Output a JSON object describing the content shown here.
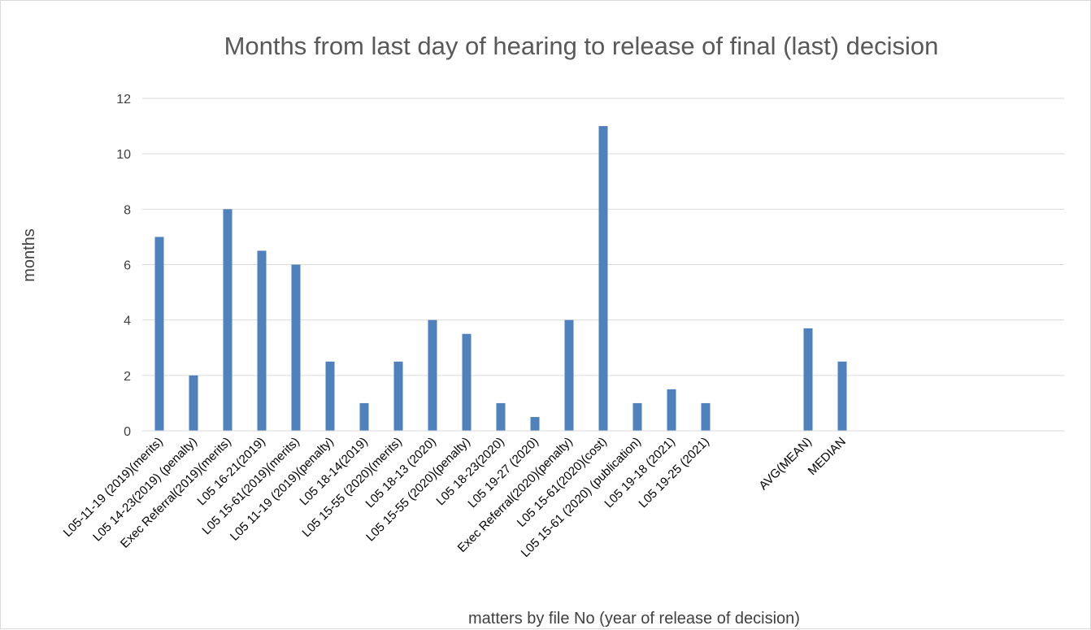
{
  "chart_data": {
    "type": "bar",
    "title": "Months from last day of hearing to release of final (last) decision",
    "xlabel": "matters by file No (year of release of decision)",
    "ylabel": "months",
    "ylim": [
      0,
      12
    ],
    "yticks": [
      0,
      2,
      4,
      6,
      8,
      10,
      12
    ],
    "grid": true,
    "legend": "none",
    "bar_color": "#4f81bd",
    "categories": [
      "L05-11-19 (2019)(merits)",
      "L05 14-23(2019) (penalty)",
      "Exec Referral(2019)(merits)",
      "L05 16-21(2019)",
      "L05 15-61(2019)(merits)",
      "L05 11-19 (2019)(penalty)",
      "L05 18-14(2019)",
      "L05 15-55 (2020)(merits)",
      "L05 18-13 (2020)",
      "L05 15-55 (2020)(penalty)",
      "L05 18-23(2020)",
      "L05 19-27 (2020)",
      "Exec Referral(2020)(penalty)",
      "L05 15-61(2020)(cost)",
      "L05 15-61 (2020) (publication)",
      "L05 19-18 (2021)",
      "L05 19-25 (2021)",
      "",
      "",
      "AVG(MEAN)",
      "MEDIAN",
      "",
      "",
      "",
      "",
      "",
      ""
    ],
    "values": [
      7,
      2,
      8,
      6.5,
      6,
      2.5,
      1,
      2.5,
      4,
      3.5,
      1,
      0.5,
      4,
      11,
      1,
      1.5,
      1,
      null,
      null,
      3.7,
      2.5,
      null,
      null,
      null,
      null,
      null,
      null
    ]
  }
}
